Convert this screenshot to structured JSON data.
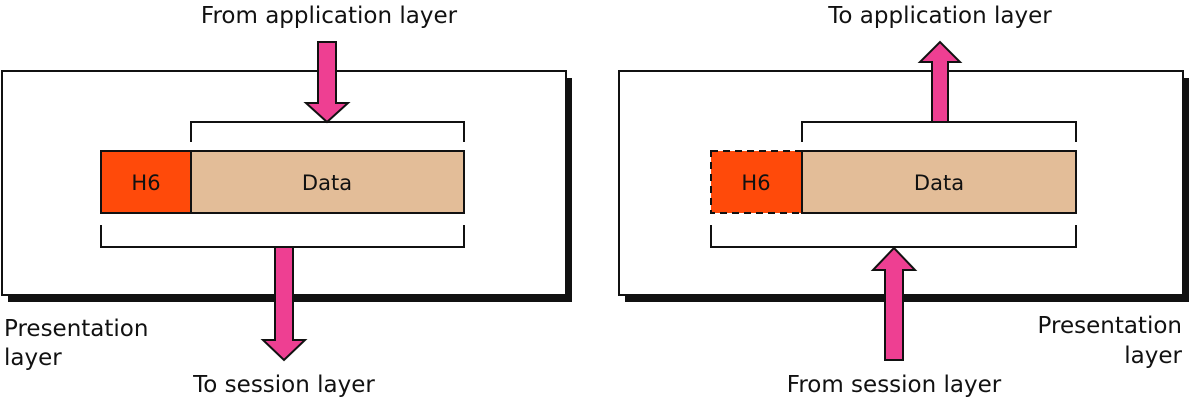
{
  "colors": {
    "header": "#ff4a0a",
    "data": "#e3bd98",
    "arrow": "#ee3f92",
    "shadow": "#111111",
    "box": "#ffffff",
    "line": "#111111"
  },
  "left": {
    "top_label": "From application layer",
    "bottom_label": "To session layer",
    "layer_label_line1": "Presentation",
    "layer_label_line2": "layer",
    "header_text": "H6",
    "data_text": "Data"
  },
  "right": {
    "top_label": "To application layer",
    "bottom_label": "From session layer",
    "layer_label_line1": "Presentation",
    "layer_label_line2": "layer",
    "header_text": "H6",
    "data_text": "Data"
  }
}
